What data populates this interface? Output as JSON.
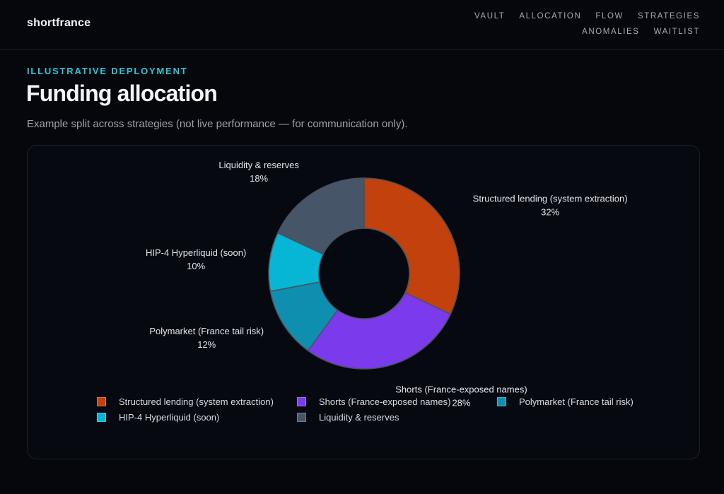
{
  "brand": "shortfrance",
  "nav": [
    {
      "label": "VAULT"
    },
    {
      "label": "ALLOCATION"
    },
    {
      "label": "FLOW"
    },
    {
      "label": "STRATEGIES"
    },
    {
      "label": "ANOMALIES"
    },
    {
      "label": "WAITLIST"
    }
  ],
  "section": {
    "eyebrow": "ILLUSTRATIVE DEPLOYMENT",
    "title": "Funding allocation",
    "subtitle": "Example split across strategies (not live performance — for communication only)."
  },
  "chart_data": {
    "type": "pie",
    "donut": true,
    "categories": [
      "Structured lending (system extraction)",
      "Shorts (France-exposed names)",
      "Polymarket (France tail risk)",
      "HIP-4 Hyperliquid (soon)",
      "Liquidity & reserves"
    ],
    "values": [
      32,
      28,
      12,
      10,
      18
    ],
    "value_labels": [
      "32%",
      "28%",
      "12%",
      "10%",
      "18%"
    ],
    "colors": [
      "#c2410c",
      "#7c3aed",
      "#0e8fb0",
      "#06b6d4",
      "#475569"
    ],
    "legend": "bottom"
  }
}
